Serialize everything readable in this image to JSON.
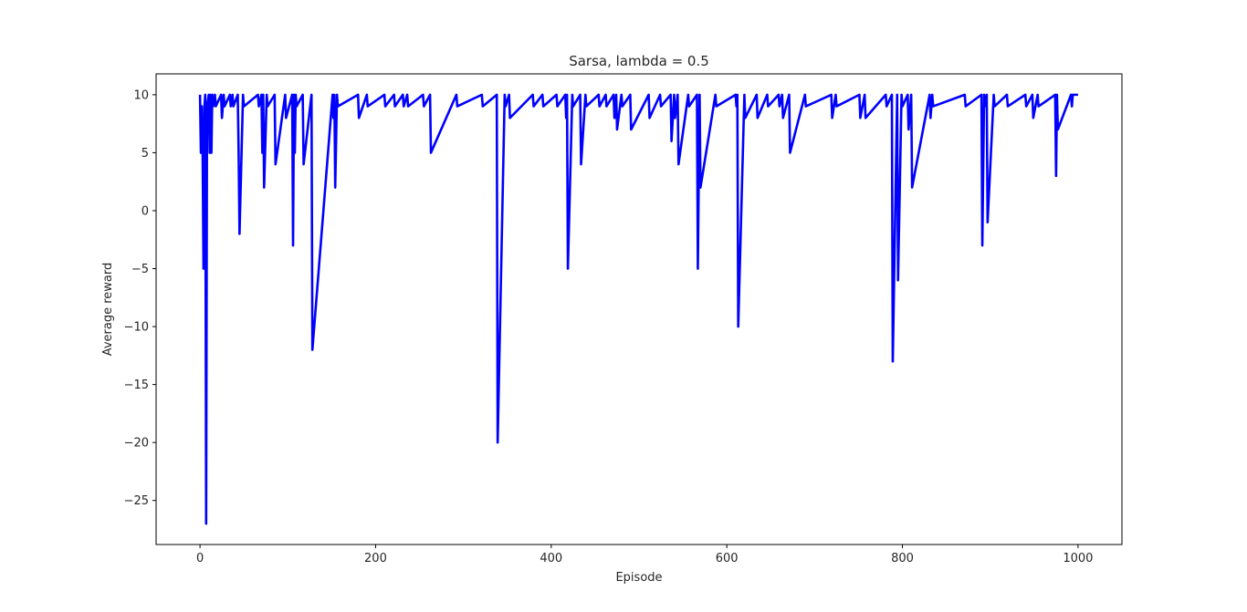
{
  "chart_data": {
    "type": "line",
    "title": "Sarsa, lambda = 0.5",
    "xlabel": "Episode",
    "ylabel": "Average reward",
    "xlim": [
      -50,
      1050
    ],
    "ylim": [
      -28.8,
      11.8
    ],
    "xticks": [
      0,
      200,
      400,
      600,
      800,
      1000
    ],
    "xtick_labels": [
      "0",
      "200",
      "400",
      "600",
      "800",
      "1000"
    ],
    "yticks": [
      10,
      5,
      0,
      -5,
      -10,
      -15,
      -20,
      -25
    ],
    "ytick_labels": [
      "10",
      "5",
      "0",
      "−5",
      "−10",
      "−15",
      "−20",
      "−25"
    ],
    "grid": false,
    "series": [
      {
        "name": "Average reward",
        "color": "#0000ff",
        "baseline": 10,
        "episodes": [
          0,
          1000
        ],
        "dips": [
          [
            1,
            5
          ],
          [
            2,
            9
          ],
          [
            3,
            5
          ],
          [
            4,
            -5
          ],
          [
            5,
            9
          ],
          [
            7,
            -27
          ],
          [
            8,
            9
          ],
          [
            11,
            5
          ],
          [
            13,
            5
          ],
          [
            15,
            9
          ],
          [
            18,
            9
          ],
          [
            25,
            8
          ],
          [
            28,
            9
          ],
          [
            35,
            9
          ],
          [
            38,
            9
          ],
          [
            44,
            5
          ],
          [
            45,
            -2
          ],
          [
            50,
            9
          ],
          [
            67,
            9
          ],
          [
            71,
            5
          ],
          [
            73,
            2
          ],
          [
            77,
            9
          ],
          [
            86,
            4
          ],
          [
            98,
            8
          ],
          [
            106,
            -3
          ],
          [
            108,
            5
          ],
          [
            110,
            9
          ],
          [
            118,
            4
          ],
          [
            128,
            -12
          ],
          [
            152,
            8
          ],
          [
            154,
            2
          ],
          [
            157,
            9
          ],
          [
            181,
            8
          ],
          [
            191,
            9
          ],
          [
            211,
            9
          ],
          [
            222,
            9
          ],
          [
            232,
            9
          ],
          [
            237,
            9
          ],
          [
            255,
            9
          ],
          [
            263,
            5
          ],
          [
            293,
            9
          ],
          [
            322,
            9
          ],
          [
            339,
            -20
          ],
          [
            348,
            9
          ],
          [
            353,
            8
          ],
          [
            380,
            9
          ],
          [
            391,
            9
          ],
          [
            407,
            9
          ],
          [
            417,
            8
          ],
          [
            419,
            -5
          ],
          [
            425,
            9
          ],
          [
            434,
            4
          ],
          [
            440,
            9
          ],
          [
            455,
            9
          ],
          [
            463,
            9
          ],
          [
            472,
            8
          ],
          [
            475,
            7
          ],
          [
            481,
            9
          ],
          [
            491,
            7
          ],
          [
            512,
            8
          ],
          [
            525,
            9
          ],
          [
            537,
            6
          ],
          [
            541,
            8
          ],
          [
            545,
            4
          ],
          [
            557,
            9
          ],
          [
            567,
            -5
          ],
          [
            570,
            2
          ],
          [
            588,
            9
          ],
          [
            611,
            9
          ],
          [
            613,
            -10
          ],
          [
            621,
            8
          ],
          [
            635,
            8
          ],
          [
            647,
            9
          ],
          [
            660,
            9
          ],
          [
            664,
            8
          ],
          [
            672,
            5
          ],
          [
            690,
            9
          ],
          [
            720,
            8
          ],
          [
            725,
            9
          ],
          [
            752,
            8
          ],
          [
            758,
            8
          ],
          [
            782,
            9
          ],
          [
            789,
            -13
          ],
          [
            795,
            -6
          ],
          [
            800,
            9
          ],
          [
            807,
            7
          ],
          [
            811,
            2
          ],
          [
            832,
            8
          ],
          [
            835,
            9
          ],
          [
            872,
            9
          ],
          [
            891,
            -3
          ],
          [
            894,
            9
          ],
          [
            897,
            -1
          ],
          [
            905,
            9
          ],
          [
            920,
            9
          ],
          [
            941,
            9
          ],
          [
            949,
            8
          ],
          [
            955,
            9
          ],
          [
            975,
            3
          ],
          [
            977,
            7
          ],
          [
            993,
            9
          ]
        ]
      }
    ]
  }
}
